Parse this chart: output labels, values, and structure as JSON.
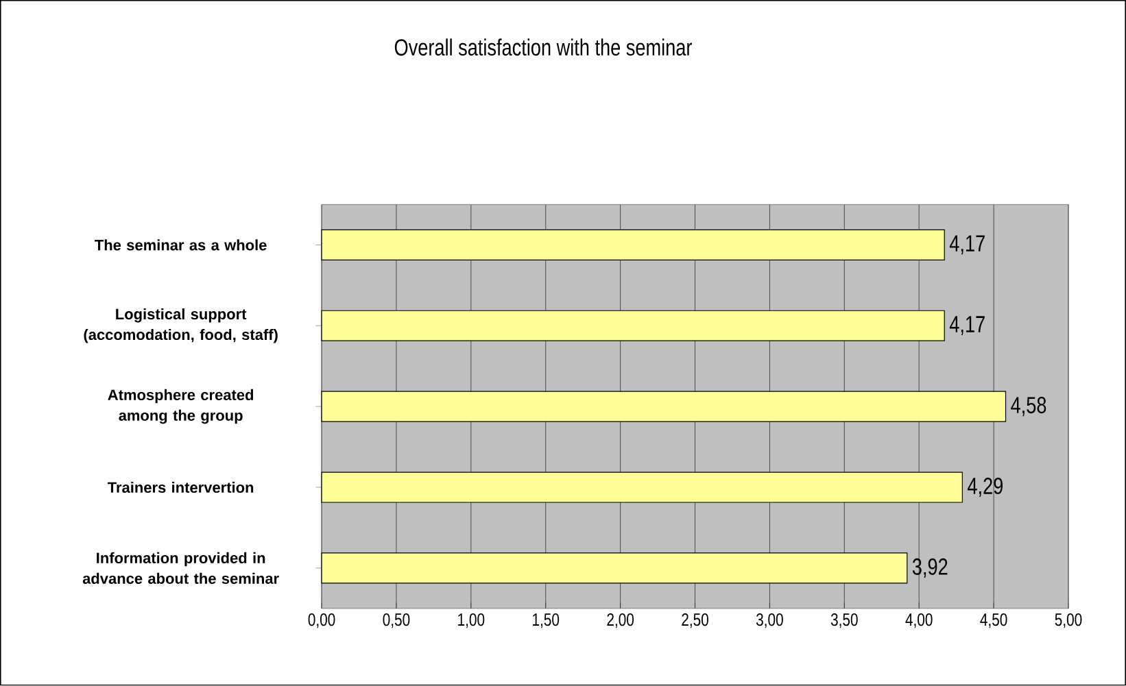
{
  "chart_data": {
    "type": "bar",
    "orientation": "horizontal",
    "title": "Overall satisfaction with the seminar",
    "categories": [
      "The seminar as a whole",
      "Logistical support (accomodation, food, staff)",
      "Atmosphere created among the group",
      "Trainers intervertion",
      "Information provided in advance about the seminar"
    ],
    "values": [
      4.17,
      4.17,
      4.58,
      4.29,
      3.92
    ],
    "value_labels": [
      "4,17",
      "4,17",
      "4,58",
      "4,29",
      "3,92"
    ],
    "color": "#ffff99",
    "xlim": [
      0,
      5
    ],
    "xticks": [
      {
        "value": 0,
        "label": "0,00"
      },
      {
        "value": 0.5,
        "label": "0,50"
      },
      {
        "value": 1,
        "label": "1,00"
      },
      {
        "value": 1.5,
        "label": "1,50"
      },
      {
        "value": 2,
        "label": "2,00"
      },
      {
        "value": 2.5,
        "label": "2,50"
      },
      {
        "value": 3,
        "label": "3,00"
      },
      {
        "value": 3.5,
        "label": "3,50"
      },
      {
        "value": 4,
        "label": "4,00"
      },
      {
        "value": 4.5,
        "label": "4,50"
      },
      {
        "value": 5,
        "label": "5,00"
      }
    ],
    "grid": "x"
  }
}
